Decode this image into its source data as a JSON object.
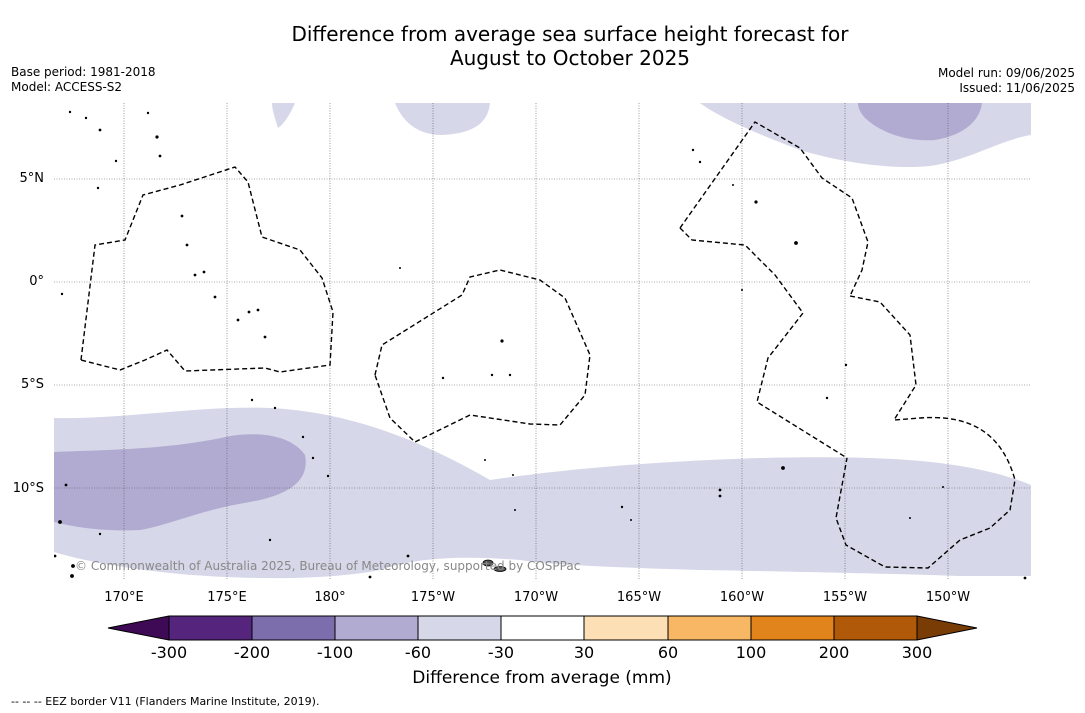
{
  "title": {
    "line1": "Difference from average sea surface height forecast for",
    "line2": "August to October 2025"
  },
  "meta_left": {
    "base_period": "Base period: 1981-2018",
    "model": "Model: ACCESS-S2"
  },
  "meta_right": {
    "model_run": "Model run: 09/06/2025",
    "issued": "Issued: 11/06/2025"
  },
  "map": {
    "lat_labels": [
      "5°N",
      "0°",
      "5°S",
      "10°S"
    ],
    "lon_labels": [
      "170°E",
      "175°E",
      "180°",
      "175°W",
      "170°W",
      "165°W",
      "160°W",
      "155°W",
      "150°W"
    ],
    "copyright": "© Commonwealth of Australia 2025, Bureau of Meteorology, supported by COSPPac",
    "colors": {
      "light_purple": "#d6d7e8",
      "mid_purple": "#b1abd1",
      "border": "#000000"
    }
  },
  "colorbar": {
    "ticks": [
      "-300",
      "-200",
      "-100",
      "-60",
      "-30",
      "30",
      "60",
      "100",
      "200",
      "300"
    ],
    "colors": [
      "#3e0a55",
      "#55257e",
      "#7c6eac",
      "#b1abd1",
      "#d6d7e8",
      "#ffffff",
      "#fddfb6",
      "#f8b764",
      "#e0841b",
      "#b05a09",
      "#7a3c05"
    ],
    "label": "Difference from average (mm)"
  },
  "footer": "--  --  -- EEZ border V11 (Flanders Marine Institute, 2019)."
}
